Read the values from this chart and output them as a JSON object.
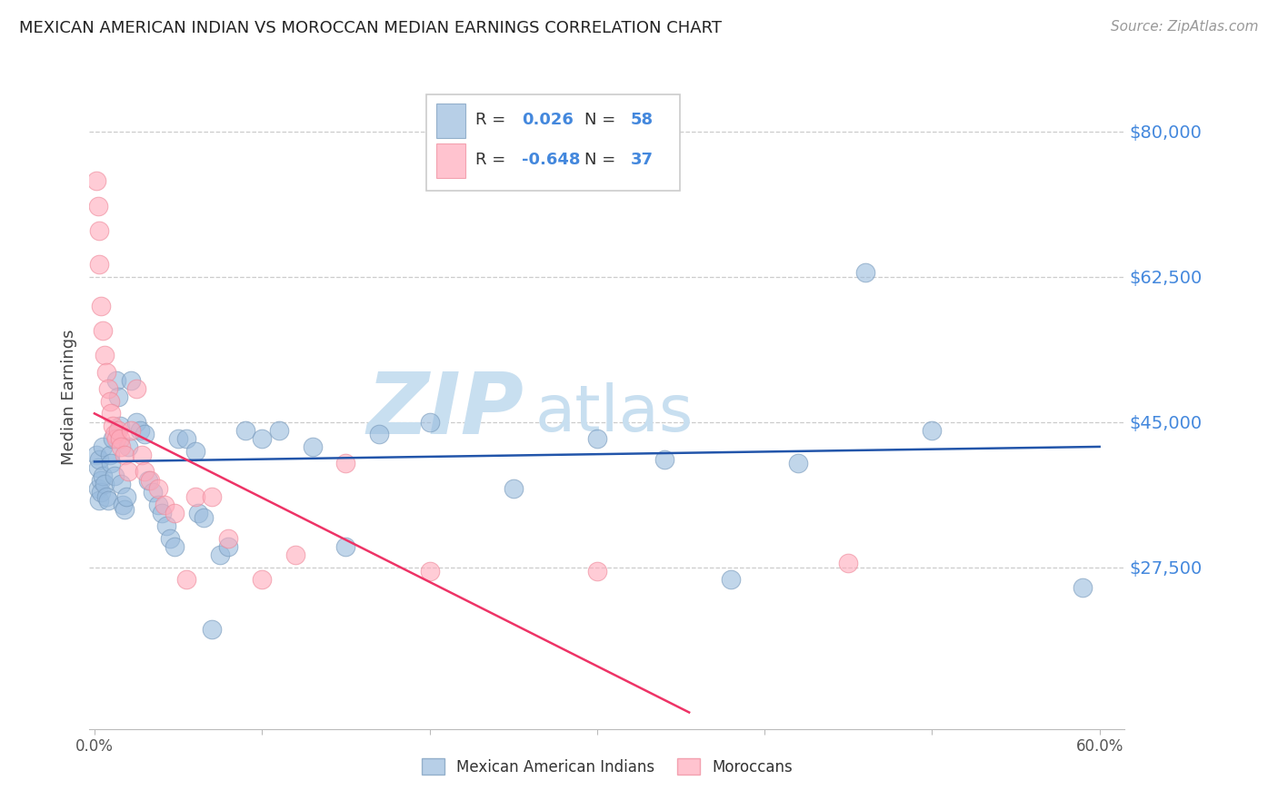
{
  "title": "MEXICAN AMERICAN INDIAN VS MOROCCAN MEDIAN EARNINGS CORRELATION CHART",
  "source": "Source: ZipAtlas.com",
  "ylabel": "Median Earnings",
  "y_tick_labels": [
    "$80,000",
    "$62,500",
    "$45,000",
    "$27,500"
  ],
  "y_tick_values": [
    80000,
    62500,
    45000,
    27500
  ],
  "y_min": 8000,
  "y_max": 88000,
  "x_min": -0.003,
  "x_max": 0.615,
  "legend_blue_r": "0.026",
  "legend_blue_n": "58",
  "legend_pink_r": "-0.648",
  "legend_pink_n": "37",
  "legend_label_blue": "Mexican American Indians",
  "legend_label_pink": "Moroccans",
  "blue_color": "#99BBDD",
  "pink_color": "#FFAABB",
  "blue_edge_color": "#7799BB",
  "pink_edge_color": "#EE8899",
  "line_blue_color": "#2255AA",
  "line_pink_color": "#EE3366",
  "tick_label_color": "#4488DD",
  "watermark_zip": "ZIP",
  "watermark_atlas": "atlas",
  "watermark_color": "#C8DFF0",
  "blue_points_x": [
    0.001,
    0.002,
    0.002,
    0.003,
    0.003,
    0.004,
    0.004,
    0.005,
    0.005,
    0.006,
    0.007,
    0.008,
    0.009,
    0.01,
    0.011,
    0.012,
    0.013,
    0.014,
    0.015,
    0.016,
    0.017,
    0.018,
    0.019,
    0.02,
    0.022,
    0.025,
    0.027,
    0.03,
    0.032,
    0.035,
    0.038,
    0.04,
    0.043,
    0.045,
    0.048,
    0.05,
    0.055,
    0.06,
    0.062,
    0.065,
    0.07,
    0.075,
    0.08,
    0.09,
    0.1,
    0.11,
    0.13,
    0.15,
    0.17,
    0.2,
    0.25,
    0.3,
    0.34,
    0.38,
    0.42,
    0.46,
    0.5,
    0.59
  ],
  "blue_points_y": [
    41000,
    39500,
    37000,
    35500,
    40500,
    38000,
    36500,
    42000,
    38500,
    37500,
    36000,
    35500,
    41000,
    40000,
    43000,
    38500,
    50000,
    48000,
    44500,
    37500,
    35000,
    34500,
    36000,
    42000,
    50000,
    45000,
    44000,
    43500,
    38000,
    36500,
    35000,
    34000,
    32500,
    31000,
    30000,
    43000,
    43000,
    41500,
    34000,
    33500,
    20000,
    29000,
    30000,
    44000,
    43000,
    44000,
    42000,
    30000,
    43500,
    45000,
    37000,
    43000,
    40500,
    26000,
    40000,
    63000,
    44000,
    25000
  ],
  "pink_points_x": [
    0.001,
    0.002,
    0.003,
    0.003,
    0.004,
    0.005,
    0.006,
    0.007,
    0.008,
    0.009,
    0.01,
    0.011,
    0.012,
    0.013,
    0.014,
    0.015,
    0.016,
    0.018,
    0.02,
    0.022,
    0.025,
    0.028,
    0.03,
    0.033,
    0.038,
    0.042,
    0.048,
    0.055,
    0.06,
    0.07,
    0.08,
    0.1,
    0.12,
    0.15,
    0.2,
    0.3,
    0.45
  ],
  "pink_points_y": [
    74000,
    71000,
    68000,
    64000,
    59000,
    56000,
    53000,
    51000,
    49000,
    47500,
    46000,
    44500,
    43500,
    43000,
    44000,
    43000,
    42000,
    41000,
    39000,
    44000,
    49000,
    41000,
    39000,
    38000,
    37000,
    35000,
    34000,
    26000,
    36000,
    36000,
    31000,
    26000,
    29000,
    40000,
    27000,
    27000,
    28000
  ],
  "blue_line_x": [
    0.0,
    0.6
  ],
  "blue_line_y": [
    40200,
    42000
  ],
  "pink_line_x": [
    0.0,
    0.355
  ],
  "pink_line_y": [
    46000,
    10000
  ]
}
